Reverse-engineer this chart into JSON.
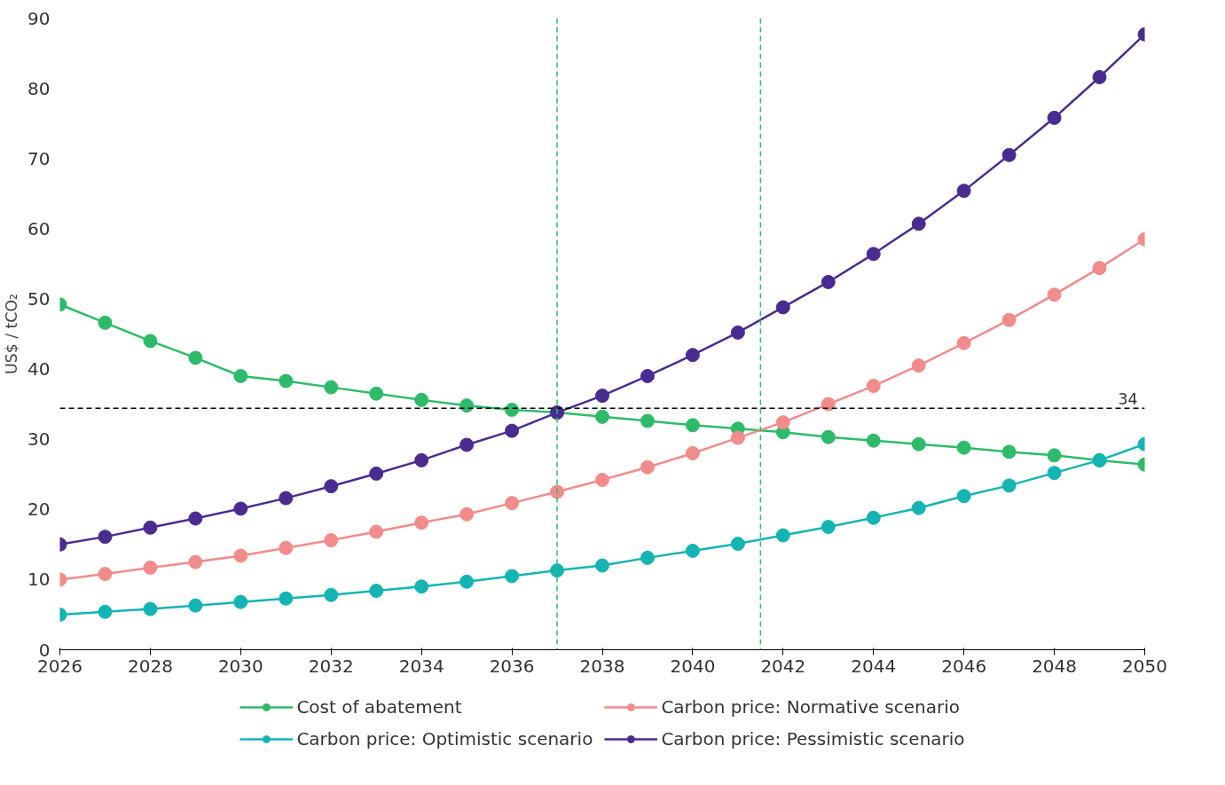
{
  "chart_data": {
    "type": "line",
    "ylabel": "US$ / tCO₂",
    "x": [
      2026,
      2027,
      2028,
      2029,
      2030,
      2031,
      2032,
      2033,
      2034,
      2035,
      2036,
      2037,
      2038,
      2039,
      2040,
      2041,
      2042,
      2043,
      2044,
      2045,
      2046,
      2047,
      2048,
      2049,
      2050
    ],
    "series": [
      {
        "name": "Cost of abatement",
        "color": "#2dbb6a",
        "values": [
          49.2,
          46.6,
          44.0,
          41.6,
          39.0,
          38.3,
          37.4,
          36.5,
          35.6,
          34.8,
          34.2,
          33.8,
          33.2,
          32.6,
          32.0,
          31.5,
          31.0,
          30.3,
          29.8,
          29.3,
          28.8,
          28.2,
          27.7,
          27.0,
          26.4
        ]
      },
      {
        "name": "Carbon price: Normative scenario",
        "color": "#f28b8b",
        "values": [
          10.0,
          10.8,
          11.7,
          12.5,
          13.4,
          14.5,
          15.6,
          16.8,
          18.1,
          19.3,
          20.9,
          22.5,
          24.2,
          26.0,
          28.0,
          30.2,
          32.4,
          35.0,
          37.6,
          40.5,
          43.7,
          47.0,
          50.6,
          54.4,
          58.5
        ]
      },
      {
        "name": "Carbon price: Optimistic scenario",
        "color": "#14b4b4",
        "values": [
          5.0,
          5.4,
          5.8,
          6.3,
          6.8,
          7.3,
          7.8,
          8.4,
          9.0,
          9.7,
          10.5,
          11.3,
          12.0,
          13.1,
          14.1,
          15.1,
          16.3,
          17.5,
          18.8,
          20.2,
          21.9,
          23.4,
          25.2,
          27.0,
          29.3
        ]
      },
      {
        "name": "Carbon price: Pessimistic scenario",
        "color": "#4a2c91",
        "values": [
          15.0,
          16.1,
          17.4,
          18.7,
          20.1,
          21.6,
          23.3,
          25.1,
          27.0,
          29.2,
          31.2,
          33.8,
          36.2,
          39.0,
          42.0,
          45.2,
          48.8,
          52.4,
          56.4,
          60.7,
          65.4,
          70.5,
          75.8,
          81.6,
          87.7
        ]
      }
    ],
    "xlim": [
      2026,
      2050
    ],
    "xticks": [
      2026,
      2028,
      2030,
      2032,
      2034,
      2036,
      2038,
      2040,
      2042,
      2044,
      2046,
      2048,
      2050
    ],
    "ylim": [
      0,
      90
    ],
    "yticks": [
      0,
      10,
      20,
      30,
      40,
      50,
      60,
      70,
      80,
      90
    ],
    "ref_lines": [
      {
        "axis": "y",
        "value": 34.4,
        "label": "34",
        "color": "#000000",
        "line_style": "dashed"
      },
      {
        "axis": "x",
        "value": 2037,
        "label": null,
        "color": "#2dbb6a",
        "line_style": "dashed"
      },
      {
        "axis": "x",
        "value": 2041.5,
        "label": null,
        "color": "#2dbb6a",
        "line_style": "dashed"
      }
    ],
    "grid": false,
    "legend": "bottom",
    "marker": "circle",
    "line_style": "solid"
  }
}
